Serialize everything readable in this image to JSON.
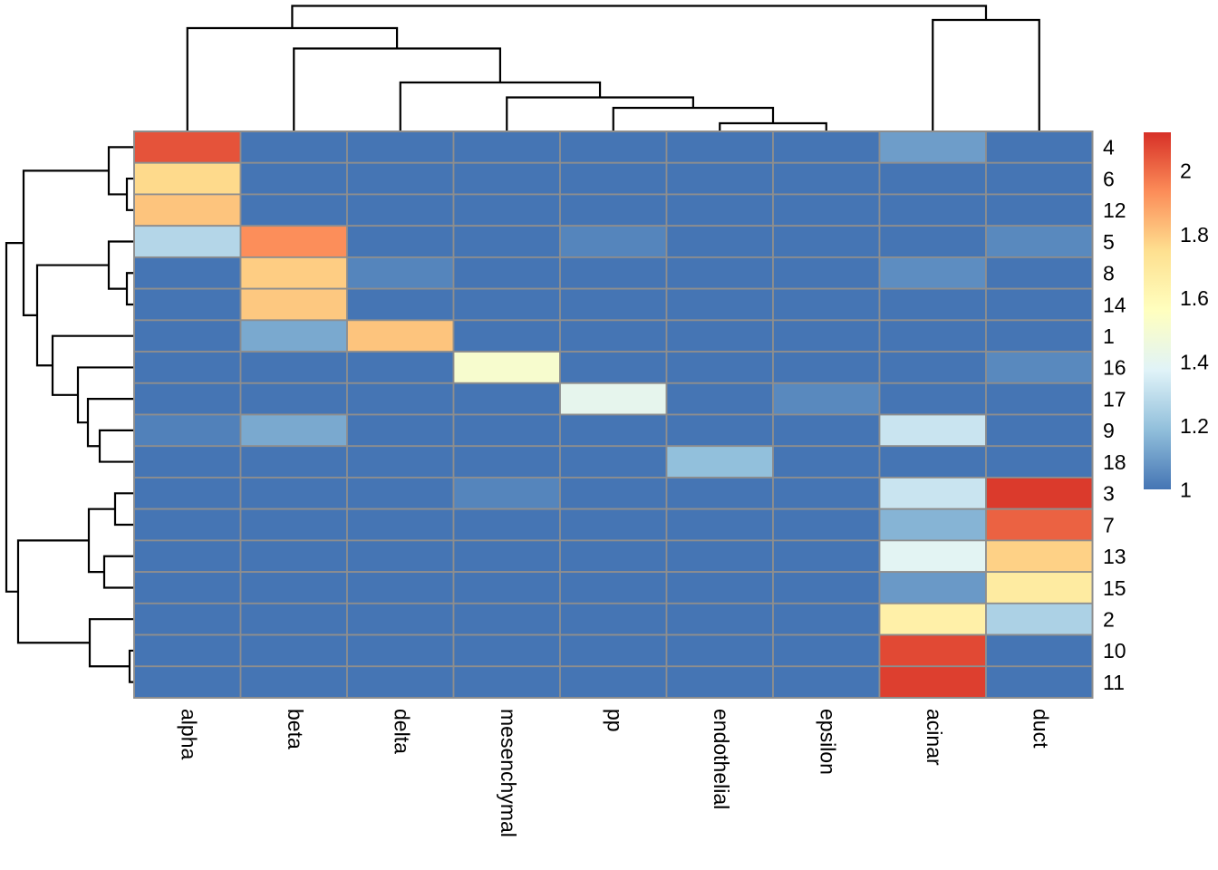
{
  "chart_data": {
    "type": "heatmap",
    "title": "",
    "columns": [
      "alpha",
      "beta",
      "delta",
      "mesenchymal",
      "pp",
      "endothelial",
      "epsilon",
      "acinar",
      "duct"
    ],
    "rows": [
      "4",
      "6",
      "12",
      "5",
      "8",
      "14",
      "1",
      "16",
      "17",
      "9",
      "18",
      "3",
      "7",
      "13",
      "15",
      "2",
      "10",
      "11"
    ],
    "values": [
      [
        2.05,
        1,
        1,
        1,
        1,
        1,
        1,
        1.1,
        1
      ],
      [
        1.76,
        1,
        1,
        1,
        1,
        1,
        1,
        1,
        1
      ],
      [
        1.81,
        1,
        1,
        1,
        1,
        1,
        1,
        1,
        1
      ],
      [
        1.27,
        1.93,
        1,
        1,
        1.04,
        1,
        1,
        1,
        1.05
      ],
      [
        1,
        1.79,
        1.04,
        1,
        1,
        1,
        1,
        1.06,
        1
      ],
      [
        1,
        1.8,
        1,
        1,
        1,
        1,
        1,
        1,
        1
      ],
      [
        1,
        1.13,
        1.81,
        1,
        1,
        1,
        1,
        1,
        1
      ],
      [
        1,
        1,
        1,
        1.51,
        1,
        1,
        1,
        1,
        1.05
      ],
      [
        1,
        1,
        1,
        1,
        1.41,
        1,
        1.05,
        1,
        1
      ],
      [
        1.03,
        1.13,
        1,
        1,
        1,
        1,
        1,
        1.32,
        1
      ],
      [
        1,
        1,
        1,
        1,
        1,
        1.19,
        1,
        1,
        1
      ],
      [
        1,
        1,
        1,
        1.04,
        1,
        1,
        1,
        1.32,
        2.1
      ],
      [
        1,
        1,
        1,
        1,
        1,
        1,
        1,
        1.16,
        2.02
      ],
      [
        1,
        1,
        1,
        1,
        1,
        1,
        1,
        1.39,
        1.78
      ],
      [
        1,
        1,
        1,
        1,
        1,
        1,
        1,
        1.09,
        1.68
      ],
      [
        1,
        1,
        1,
        1,
        1,
        1,
        1,
        1.65,
        1.25
      ],
      [
        1,
        1,
        1,
        1,
        1,
        1,
        1,
        2.07,
        1
      ],
      [
        1,
        1,
        1,
        1,
        1,
        1,
        1,
        2.09,
        1
      ]
    ],
    "value_domain": [
      1.0,
      2.12
    ],
    "colorscale": [
      "#4575B4",
      "#91BFDB",
      "#E0F3F8",
      "#FFFFBF",
      "#FEE090",
      "#FC8D59",
      "#D73027"
    ],
    "grid_color": "#8e8e8e",
    "dendro_color": "#000000",
    "legend": {
      "ticks": [
        "2",
        "1.8",
        "1.6",
        "1.4",
        "1.2",
        "1"
      ],
      "tick_values": [
        2,
        1.8,
        1.6,
        1.4,
        1.2,
        1
      ]
    },
    "col_dendrogram": {
      "merges": [
        [
          [
            "leaf",
            5
          ],
          [
            "leaf",
            6
          ],
          136
        ],
        [
          [
            "leaf",
            4
          ],
          [
            "node",
            0
          ],
          119
        ],
        [
          [
            "leaf",
            3
          ],
          [
            "node",
            1
          ],
          107.5
        ],
        [
          [
            "leaf",
            2
          ],
          [
            "node",
            2
          ],
          91
        ],
        [
          [
            "leaf",
            1
          ],
          [
            "node",
            3
          ],
          53.5
        ],
        [
          [
            "leaf",
            0
          ],
          [
            "node",
            4
          ],
          31
        ],
        [
          [
            "leaf",
            7
          ],
          [
            "leaf",
            8
          ],
          22
        ],
        [
          [
            "node",
            5
          ],
          [
            "node",
            6
          ],
          6.5
        ]
      ]
    },
    "row_dendrogram": {
      "merges": [
        [
          [
            "leaf",
            1
          ],
          [
            "leaf",
            2
          ],
          140
        ],
        [
          [
            "leaf",
            0
          ],
          [
            "node",
            0
          ],
          120
        ],
        [
          [
            "leaf",
            4
          ],
          [
            "leaf",
            5
          ],
          140
        ],
        [
          [
            "leaf",
            3
          ],
          [
            "node",
            2
          ],
          120
        ],
        [
          [
            "leaf",
            9
          ],
          [
            "leaf",
            10
          ],
          110
        ],
        [
          [
            "leaf",
            8
          ],
          [
            "node",
            4
          ],
          97
        ],
        [
          [
            "leaf",
            7
          ],
          [
            "node",
            5
          ],
          86
        ],
        [
          [
            "leaf",
            6
          ],
          [
            "node",
            6
          ],
          58
        ],
        [
          [
            "node",
            3
          ],
          [
            "node",
            7
          ],
          41
        ],
        [
          [
            "node",
            1
          ],
          [
            "node",
            8
          ],
          26
        ],
        [
          [
            "leaf",
            11
          ],
          [
            "leaf",
            12
          ],
          127
        ],
        [
          [
            "leaf",
            13
          ],
          [
            "leaf",
            14
          ],
          115
        ],
        [
          [
            "node",
            10
          ],
          [
            "node",
            11
          ],
          98
        ],
        [
          [
            "leaf",
            16
          ],
          [
            "leaf",
            17
          ],
          143
        ],
        [
          [
            "leaf",
            15
          ],
          [
            "node",
            13
          ],
          99
        ],
        [
          [
            "node",
            12
          ],
          [
            "node",
            14
          ],
          20
        ],
        [
          [
            "node",
            9
          ],
          [
            "node",
            15
          ],
          7
        ]
      ]
    }
  }
}
